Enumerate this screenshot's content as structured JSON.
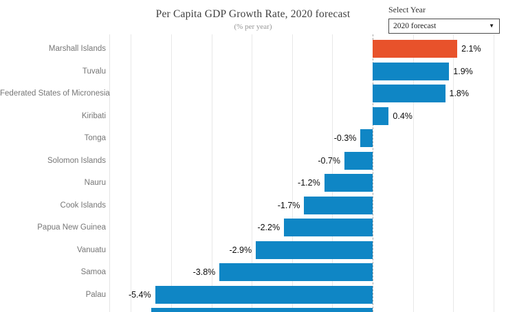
{
  "header": {
    "title": "Per Capita GDP Growth Rate, 2020 forecast",
    "subtitle": "(% per year)"
  },
  "year_selector": {
    "label": "Select Year",
    "selected": "2020 forecast",
    "arrow_glyph": "▼"
  },
  "colors": {
    "bar_default": "#0f86c5",
    "bar_highlight": "#e8522b",
    "gridline": "#e8e8e8",
    "zero_line": "#a8a8a8",
    "category_text": "#767676",
    "value_text": "#0d0d0d"
  },
  "chart_data": {
    "type": "bar",
    "orientation": "horizontal",
    "title": "Per Capita GDP Growth Rate, 2020 forecast",
    "subtitle": "(% per year)",
    "unit": "% per year",
    "xlim": [
      -6.54,
      3.31
    ],
    "gridlines": [
      -6,
      -5,
      -4,
      -3,
      -2,
      -1,
      0,
      1,
      2,
      3
    ],
    "zero_line_dashed": true,
    "legend": "none",
    "categories": [
      "Marshall Islands",
      "Tuvalu",
      "Federated States of Micronesia",
      "Kiribati",
      "Tonga",
      "Solomon Islands",
      "Nauru",
      "Cook Islands",
      "Papua New Guinea",
      "Vanuatu",
      "Samoa",
      "Palau"
    ],
    "values": [
      2.1,
      1.9,
      1.8,
      0.4,
      -0.3,
      -0.7,
      -1.2,
      -1.7,
      -2.2,
      -2.9,
      -3.8,
      -5.4
    ],
    "value_labels": [
      "2.1%",
      "1.9%",
      "1.8%",
      "0.4%",
      "-0.3%",
      "-0.7%",
      "-1.2%",
      "-1.7%",
      "-2.2%",
      "-2.9%",
      "-3.8%",
      "-5.4%"
    ],
    "highlight_index": 0,
    "partial_bottom_bar": {
      "value": -5.5,
      "label_visible": false
    }
  }
}
